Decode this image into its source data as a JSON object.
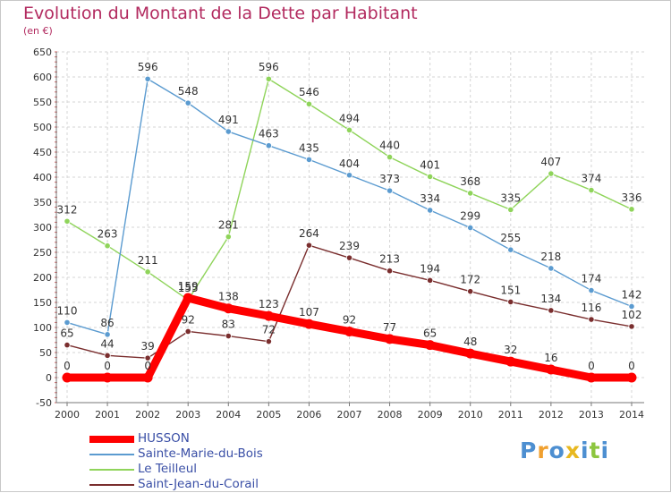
{
  "title": "Evolution du Montant de la Dette par Habitant",
  "unit_label": "(en €)",
  "logo": {
    "letters": [
      "P",
      "r",
      "o",
      "x",
      "i",
      "t",
      "i"
    ],
    "colors": [
      "#4d8fd1",
      "#f0a030",
      "#4d8fd1",
      "#e8b820",
      "#4d8fd1",
      "#8dc63f",
      "#4d8fd1"
    ]
  },
  "chart_data": {
    "type": "line",
    "x": [
      "2000",
      "2001",
      "2002",
      "2003",
      "2004",
      "2005",
      "2006",
      "2007",
      "2008",
      "2009",
      "2010",
      "2011",
      "2012",
      "2013",
      "2014"
    ],
    "ylim": [
      -50,
      650
    ],
    "yticks": [
      "-50",
      "0",
      "50",
      "100",
      "150",
      "200",
      "250",
      "300",
      "350",
      "400",
      "450",
      "500",
      "550",
      "600",
      "650"
    ],
    "grid": "horizontal dashed",
    "legend_position": "bottom-left",
    "series": [
      {
        "name": "HUSSON",
        "color": "#ff0000",
        "values": [
          0,
          0,
          0,
          159,
          138,
          123,
          107,
          92,
          77,
          65,
          48,
          32,
          16,
          0,
          0
        ],
        "labels": [
          "0",
          "0",
          "0",
          "159",
          "138",
          "123",
          "107",
          "92",
          "77",
          "65",
          "48",
          "32",
          "16",
          "0",
          "0"
        ]
      },
      {
        "name": "Sainte-Marie-du-Bois",
        "color": "#5b9bd0",
        "values": [
          110,
          86,
          596,
          548,
          491,
          463,
          435,
          404,
          373,
          334,
          299,
          255,
          218,
          174,
          142
        ],
        "labels": [
          "110",
          "86",
          "596",
          "548",
          "491",
          "463",
          "435",
          "404",
          "373",
          "334",
          "299",
          "255",
          "218",
          "174",
          "142"
        ]
      },
      {
        "name": "Le Teilleul",
        "color": "#8fd45a",
        "values": [
          312,
          263,
          211,
          155,
          281,
          596,
          546,
          494,
          440,
          401,
          368,
          335,
          407,
          374,
          336
        ],
        "labels": [
          "312",
          "263",
          "211",
          "155",
          "281",
          "596",
          "546",
          "494",
          "440",
          "401",
          "368",
          "335",
          "407",
          "374",
          "336"
        ]
      },
      {
        "name": "Saint-Jean-du-Corail",
        "color": "#7a2e2e",
        "values": [
          65,
          44,
          39,
          92,
          83,
          72,
          264,
          239,
          213,
          194,
          172,
          151,
          134,
          116,
          102
        ],
        "labels": [
          "65",
          "44",
          "39",
          "92",
          "83",
          "72",
          "264",
          "239",
          "213",
          "194",
          "172",
          "151",
          "134",
          "116",
          "102"
        ]
      }
    ]
  }
}
